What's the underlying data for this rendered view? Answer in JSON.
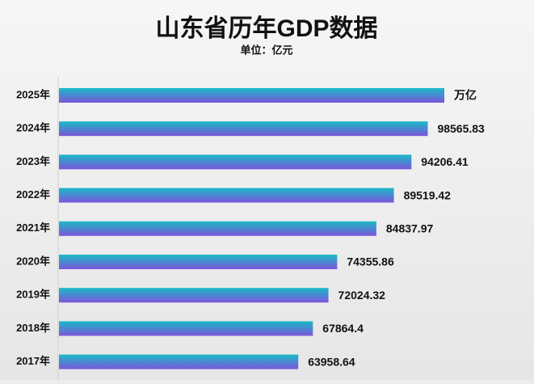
{
  "chart_data": {
    "type": "bar",
    "orientation": "horizontal",
    "title": "山东省历年GDP数据",
    "subtitle": "单位：亿元",
    "categories": [
      "2025年",
      "2024年",
      "2023年",
      "2022年",
      "2021年",
      "2020年",
      "2019年",
      "2018年",
      "2017年"
    ],
    "values": [
      103000,
      98565.83,
      94206.41,
      89519.42,
      84837.97,
      74355.86,
      72024.32,
      67864.4,
      63958.64
    ],
    "value_labels": [
      "万亿",
      "98565.83",
      "94206.41",
      "89519.42",
      "84837.97",
      "74355.86",
      "72024.32",
      "67864.4",
      "63958.64"
    ],
    "colors": [
      "#19bac6",
      "#7c55da"
    ]
  }
}
